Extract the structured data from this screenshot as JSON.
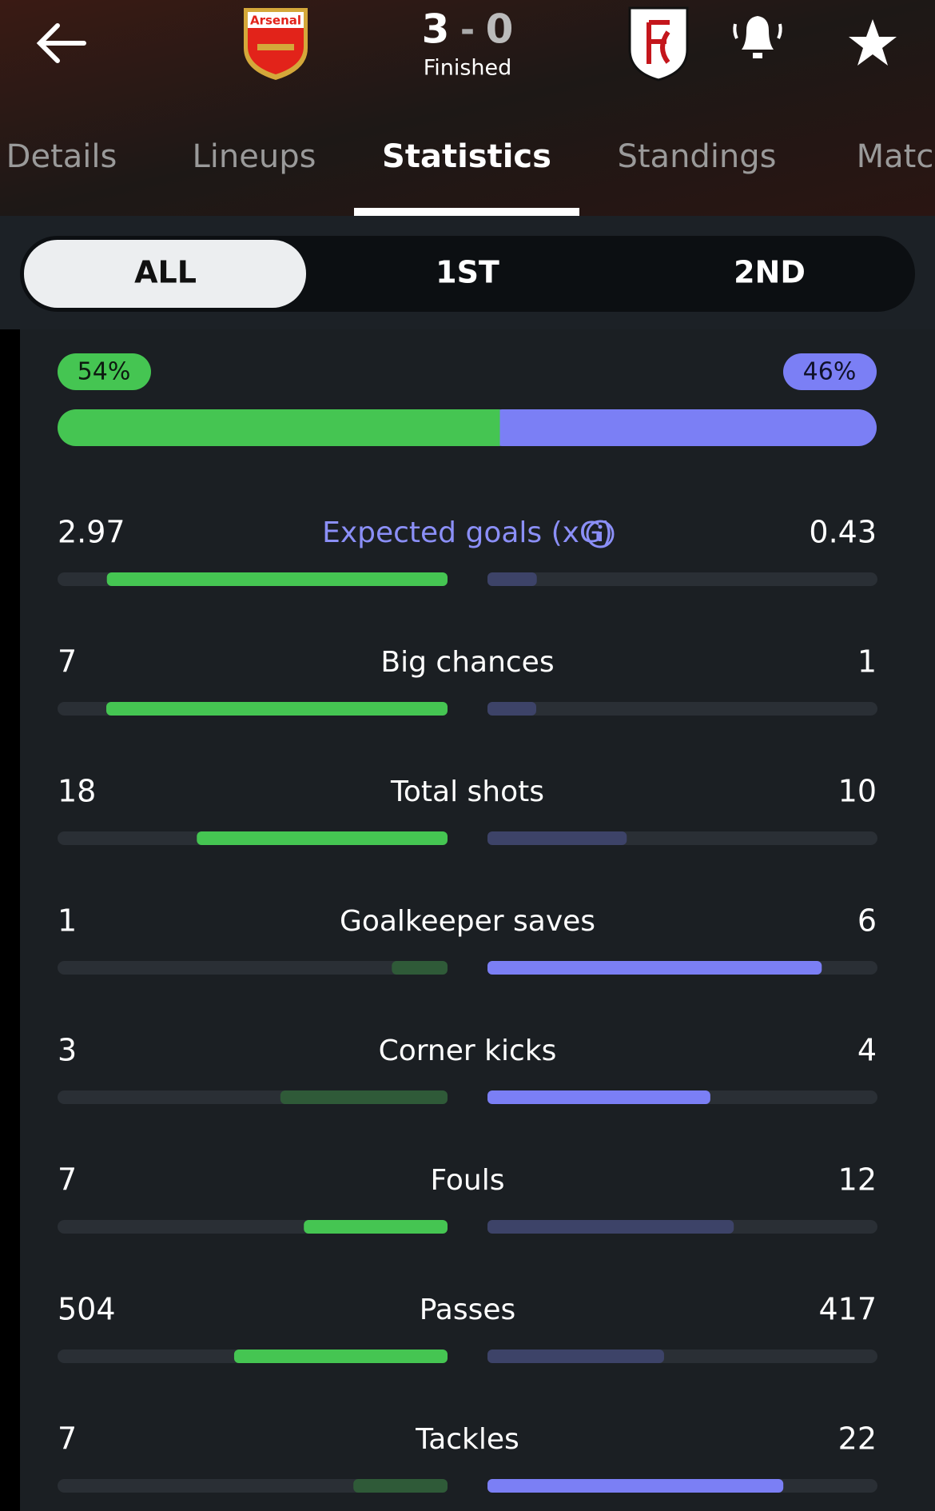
{
  "header": {
    "home_score": 3,
    "away_score": 0,
    "status": "Finished",
    "home_logo_text": "Arsenal"
  },
  "tabs": [
    "Details",
    "Lineups",
    "Statistics",
    "Standings",
    "Matc"
  ],
  "active_tab": 2,
  "periods": [
    "ALL",
    "1ST",
    "2ND"
  ],
  "active_period": 0,
  "possession": {
    "home": 54,
    "away": 46,
    "home_label": "54%",
    "away_label": "46%",
    "home_color": "#45c552",
    "away_color": "#7b7ff5"
  },
  "stats": [
    {
      "label": "Expected goals (xG)",
      "home": 2.97,
      "away": 0.43,
      "highlight": "home",
      "label_color": "#8b8ff7"
    },
    {
      "label": "Big chances",
      "home": 7,
      "away": 1,
      "highlight": "home"
    },
    {
      "label": "Total shots",
      "home": 18,
      "away": 10,
      "highlight": "home"
    },
    {
      "label": "Goalkeeper saves",
      "home": 1,
      "away": 6,
      "highlight": "away"
    },
    {
      "label": "Corner kicks",
      "home": 3,
      "away": 4,
      "highlight": "away"
    },
    {
      "label": "Fouls",
      "home": 7,
      "away": 12,
      "highlight": "home"
    },
    {
      "label": "Passes",
      "home": 504,
      "away": 417,
      "highlight": "home"
    },
    {
      "label": "Tackles",
      "home": 7,
      "away": 22,
      "highlight": "away"
    }
  ]
}
